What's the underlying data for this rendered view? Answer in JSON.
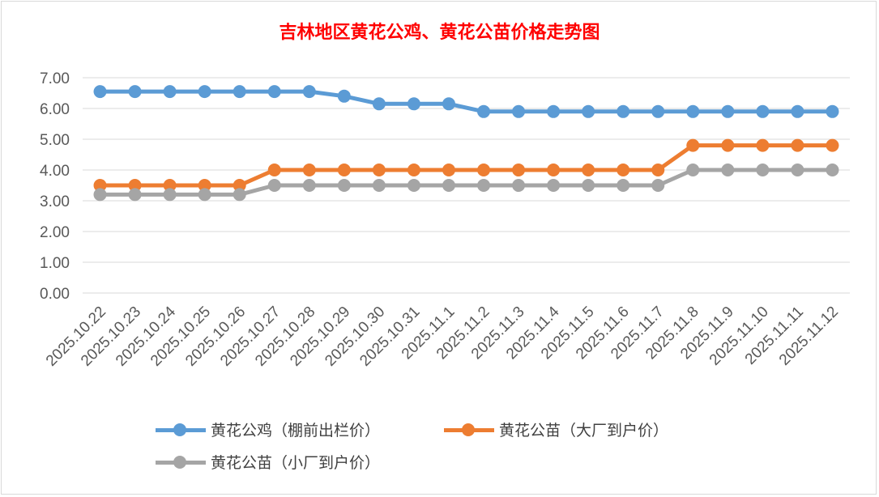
{
  "chart_data": {
    "type": "line",
    "title": "吉林地区黄花公鸡、黄花公苗价格走势图",
    "xlabel": "",
    "ylabel": "",
    "ylim": [
      0,
      7
    ],
    "yticks": [
      "0.00",
      "1.00",
      "2.00",
      "3.00",
      "4.00",
      "5.00",
      "6.00",
      "7.00"
    ],
    "grid": true,
    "legend_position": "bottom",
    "categories": [
      "2025.10.22",
      "2025.10.23",
      "2025.10.24",
      "2025.10.25",
      "2025.10.26",
      "2025.10.27",
      "2025.10.28",
      "2025.10.29",
      "2025.10.30",
      "2025.10.31",
      "2025.11.1",
      "2025.11.2",
      "2025.11.3",
      "2025.11.4",
      "2025.11.5",
      "2025.11.6",
      "2025.11.7",
      "2025.11.8",
      "2025.11.9",
      "2025.11.10",
      "2025.11.11",
      "2025.11.12"
    ],
    "series": [
      {
        "name": "黄花公鸡（棚前出栏价）",
        "color": "#5b9bd5",
        "values": [
          6.55,
          6.55,
          6.55,
          6.55,
          6.55,
          6.55,
          6.55,
          6.4,
          6.15,
          6.15,
          6.15,
          5.9,
          5.9,
          5.9,
          5.9,
          5.9,
          5.9,
          5.9,
          5.9,
          5.9,
          5.9,
          5.9
        ]
      },
      {
        "name": "黄花公苗（大厂到户价）",
        "color": "#ed7d31",
        "values": [
          3.5,
          3.5,
          3.5,
          3.5,
          3.5,
          4.0,
          4.0,
          4.0,
          4.0,
          4.0,
          4.0,
          4.0,
          4.0,
          4.0,
          4.0,
          4.0,
          4.0,
          4.8,
          4.8,
          4.8,
          4.8,
          4.8
        ]
      },
      {
        "name": "黄花公苗（小厂到户价）",
        "color": "#a5a5a5",
        "values": [
          3.2,
          3.2,
          3.2,
          3.2,
          3.2,
          3.5,
          3.5,
          3.5,
          3.5,
          3.5,
          3.5,
          3.5,
          3.5,
          3.5,
          3.5,
          3.5,
          3.5,
          4.0,
          4.0,
          4.0,
          4.0,
          4.0
        ]
      }
    ]
  }
}
